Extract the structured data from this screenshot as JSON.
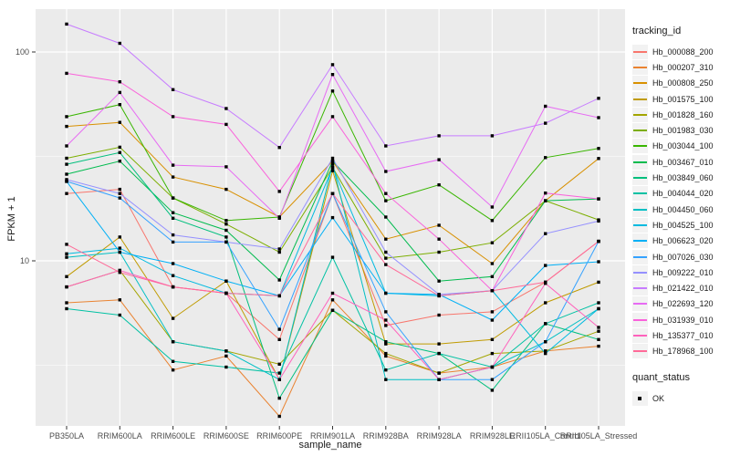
{
  "chart_data": {
    "type": "line",
    "title": "",
    "xlabel": "sample_name",
    "ylabel": "FPKM + 1",
    "y_scale": "log10",
    "y_tick_values": [
      100,
      10
    ],
    "y_tick_labels": [
      "100",
      "10"
    ],
    "y_minor_gridlines": [
      31.623,
      3.1623
    ],
    "ylim": [
      1.62,
      160
    ],
    "grid": "on",
    "legend_position": "right",
    "marker": "black-square",
    "categories": [
      "PB350LA",
      "RRIM600LA",
      "RRIM600LE",
      "RRIM600SE",
      "RRIM600PE",
      "RRIM901LA",
      "RRIM928BA",
      "RRIM928LA",
      "RRIM928LE",
      "RRII105LA_Control",
      "RRII105LA_Stressed"
    ],
    "series": [
      {
        "name": "Hb_000088_200",
        "color": "#F8766D",
        "values": [
          21,
          22,
          7.5,
          7.0,
          4.2,
          21,
          4.9,
          5.5,
          5.7,
          7.9,
          12.4
        ]
      },
      {
        "name": "Hb_000207_310",
        "color": "#EA8331",
        "values": [
          6.3,
          6.5,
          3.0,
          3.5,
          1.8,
          6.5,
          3.5,
          2.9,
          3.1,
          3.7,
          3.9
        ]
      },
      {
        "name": "Hb_000808_250",
        "color": "#D89000",
        "values": [
          44,
          46,
          25.2,
          22,
          16.2,
          30,
          12.7,
          14.8,
          9.7,
          19.4,
          30.9
        ]
      },
      {
        "name": "Hb_001575_100",
        "color": "#C09B00",
        "values": [
          8.4,
          13,
          5.3,
          8.0,
          2.7,
          27,
          4.0,
          4.0,
          4.2,
          6.3,
          7.9
        ]
      },
      {
        "name": "Hb_001828_160",
        "color": "#A3A500",
        "values": [
          7.5,
          9.0,
          4.1,
          3.7,
          3.2,
          5.8,
          3.6,
          2.9,
          3.6,
          3.7,
          4.6
        ]
      },
      {
        "name": "Hb_001983_030",
        "color": "#7CAE00",
        "values": [
          31,
          35,
          20,
          15,
          11,
          28,
          10.3,
          11.0,
          12.2,
          19.4,
          15.7
        ]
      },
      {
        "name": "Hb_003044_100",
        "color": "#39B600",
        "values": [
          49,
          56,
          20,
          15.6,
          16.2,
          65,
          19.4,
          23.1,
          15.6,
          31.2,
          34.5
        ]
      },
      {
        "name": "Hb_003467_010",
        "color": "#00BB4E",
        "values": [
          26,
          30,
          17,
          14,
          8.1,
          30,
          16.2,
          8.0,
          8.4,
          19.4,
          19.8
        ]
      },
      {
        "name": "Hb_003849_060",
        "color": "#00BF7D",
        "values": [
          29,
          33,
          16,
          13,
          2.2,
          5.8,
          4.1,
          3.6,
          2.4,
          5.0,
          4.2
        ]
      },
      {
        "name": "Hb_004044_020",
        "color": "#00C1A3",
        "values": [
          5.9,
          5.5,
          3.3,
          3.1,
          2.9,
          10.4,
          3.0,
          3.6,
          3.1,
          5.0,
          6.3
        ]
      },
      {
        "name": "Hb_004450_060",
        "color": "#00BFC4",
        "values": [
          10.4,
          11,
          4.1,
          3.7,
          2.7,
          29,
          2.7,
          2.7,
          3.1,
          4.1,
          5.9
        ]
      },
      {
        "name": "Hb_004525_100",
        "color": "#00BAE0",
        "values": [
          10.8,
          11.5,
          8.5,
          7.0,
          6.8,
          28,
          7.0,
          6.8,
          7.2,
          3.6,
          5.9
        ]
      },
      {
        "name": "Hb_006623_020",
        "color": "#00B0F6",
        "values": [
          24,
          11,
          9.7,
          8.0,
          6.8,
          16.1,
          7.0,
          6.9,
          5.2,
          9.5,
          9.9
        ]
      },
      {
        "name": "Hb_007026_030",
        "color": "#35A2FF",
        "values": [
          24,
          20,
          12.3,
          12.3,
          4.7,
          21,
          5.7,
          2.7,
          2.7,
          4.1,
          12.4
        ]
      },
      {
        "name": "Hb_009222_010",
        "color": "#9590FF",
        "values": [
          24.5,
          21,
          13.3,
          12.3,
          11.4,
          31,
          11,
          6.9,
          7.2,
          13.5,
          15.5
        ]
      },
      {
        "name": "Hb_021422_010",
        "color": "#C77CFF",
        "values": [
          136,
          110,
          66,
          53.6,
          34.9,
          87,
          35.5,
          39.7,
          39.7,
          45.6,
          60
        ]
      },
      {
        "name": "Hb_022693_120",
        "color": "#E76BF3",
        "values": [
          35.5,
          64,
          28.7,
          28.2,
          16.0,
          78,
          26.8,
          30.5,
          18.1,
          55,
          48.5
        ]
      },
      {
        "name": "Hb_031939_010",
        "color": "#FA62DB",
        "values": [
          79,
          72,
          49,
          45,
          21.5,
          49,
          21,
          12.7,
          7.2,
          21.1,
          19.8
        ]
      },
      {
        "name": "Hb_135377_010",
        "color": "#FF62BC",
        "values": [
          7.5,
          9.0,
          7.5,
          7.0,
          2.7,
          7.0,
          5.2,
          2.7,
          3.1,
          7.8,
          4.8
        ]
      },
      {
        "name": "Hb_178968_100",
        "color": "#FF6A98",
        "values": [
          12,
          8.8,
          7.5,
          7.0,
          6.8,
          21,
          9.6,
          6.8,
          7.2,
          7.9,
          12.4
        ]
      }
    ],
    "legend": {
      "tracking_title": "tracking_id",
      "quant_title": "quant_status",
      "quant_items": [
        {
          "label": "OK"
        }
      ]
    },
    "colors": {
      "panel_bg": "#EBEBEB",
      "gridline": "#FFFFFF",
      "legend_key_bg": "#F2F2F2",
      "marker": "#000000",
      "tick_text": "#4D4D4D",
      "title_text": "#1A1A1A"
    }
  }
}
